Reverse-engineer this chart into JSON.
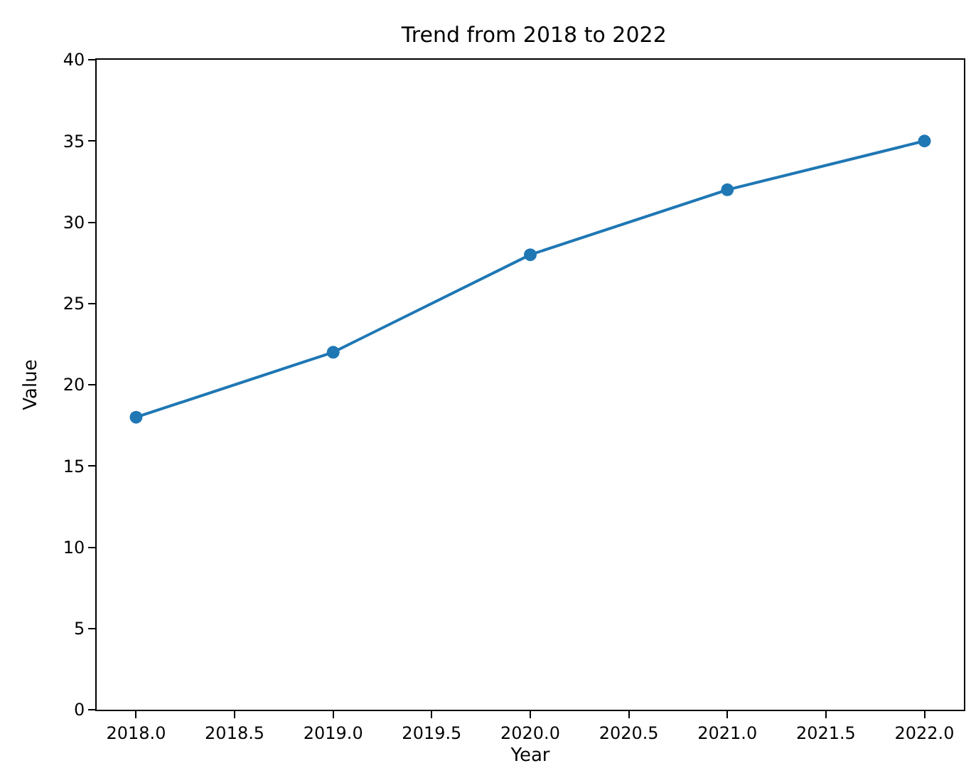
{
  "chart_data": {
    "type": "line",
    "title": "Trend from 2018 to 2022",
    "xlabel": "Year",
    "ylabel": "Value",
    "x": [
      2018,
      2019,
      2020,
      2021,
      2022
    ],
    "series": [
      {
        "color": "#1f77b4",
        "values": [
          18,
          22,
          28,
          32,
          35
        ]
      }
    ],
    "xlim": [
      2017.8,
      2022.2
    ],
    "xticks": [
      {
        "value": 2018,
        "label": "2018.0"
      },
      {
        "value": 2018.5,
        "label": "2018.5"
      },
      {
        "value": 2019,
        "label": "2019.0"
      },
      {
        "value": 2019.5,
        "label": "2019.5"
      },
      {
        "value": 2020,
        "label": "2020.0"
      },
      {
        "value": 2020.5,
        "label": "2020.5"
      },
      {
        "value": 2021,
        "label": "2021.0"
      },
      {
        "value": 2021.5,
        "label": "2021.5"
      },
      {
        "value": 2022,
        "label": "2022.0"
      }
    ],
    "ylim": [
      0,
      40
    ],
    "yticks": [
      0,
      5,
      10,
      15,
      20,
      25,
      30,
      35,
      40
    ],
    "marker": "circle",
    "line_style": "solid"
  }
}
